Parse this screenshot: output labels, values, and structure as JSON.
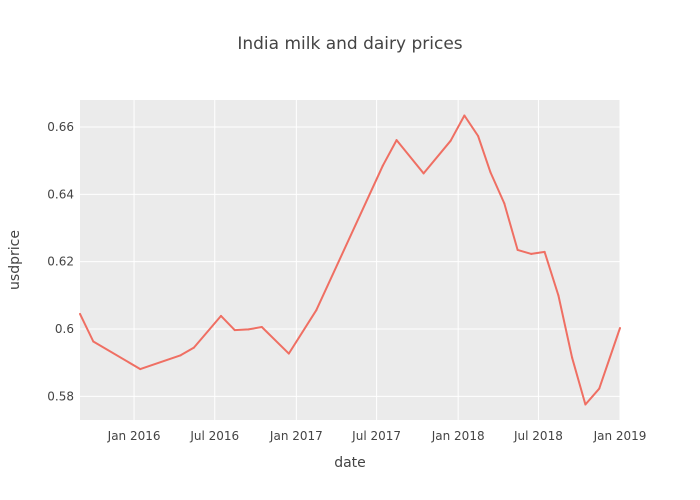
{
  "chart_data": {
    "type": "line",
    "title": "India milk and dairy prices",
    "xlabel": "date",
    "ylabel": "usdprice",
    "ylim": [
      0.573,
      0.668
    ],
    "xlim": [
      "2015-09-01",
      "2019-01-01"
    ],
    "grid": true,
    "legend": "none",
    "x_ticks": [
      {
        "date": "2016-01-01",
        "label": "Jan 2016"
      },
      {
        "date": "2016-07-01",
        "label": "Jul 2016"
      },
      {
        "date": "2017-01-01",
        "label": "Jan 2017"
      },
      {
        "date": "2017-07-01",
        "label": "Jul 2017"
      },
      {
        "date": "2018-01-01",
        "label": "Jan 2018"
      },
      {
        "date": "2018-07-01",
        "label": "Jul 2018"
      },
      {
        "date": "2019-01-01",
        "label": "Jan 2019"
      }
    ],
    "y_ticks": [
      {
        "value": 0.58,
        "label": "0.58"
      },
      {
        "value": 0.6,
        "label": "0.6"
      },
      {
        "value": 0.62,
        "label": "0.62"
      },
      {
        "value": 0.64,
        "label": "0.64"
      },
      {
        "value": 0.66,
        "label": "0.66"
      }
    ],
    "series": [
      {
        "color": "#ef6f63",
        "points": [
          {
            "x": "2015-09-01",
            "y": 0.6045
          },
          {
            "x": "2015-10-01",
            "y": 0.5963
          },
          {
            "x": "2016-01-15",
            "y": 0.5881
          },
          {
            "x": "2016-04-15",
            "y": 0.5922
          },
          {
            "x": "2016-05-15",
            "y": 0.5945
          },
          {
            "x": "2016-07-15",
            "y": 0.6039
          },
          {
            "x": "2016-08-15",
            "y": 0.5997
          },
          {
            "x": "2016-09-15",
            "y": 0.5999
          },
          {
            "x": "2016-10-15",
            "y": 0.6006
          },
          {
            "x": "2016-12-15",
            "y": 0.5927
          },
          {
            "x": "2017-02-15",
            "y": 0.6056
          },
          {
            "x": "2017-07-15",
            "y": 0.6485
          },
          {
            "x": "2017-08-15",
            "y": 0.6561
          },
          {
            "x": "2017-10-15",
            "y": 0.6462
          },
          {
            "x": "2017-12-15",
            "y": 0.6559
          },
          {
            "x": "2018-01-15",
            "y": 0.6634
          },
          {
            "x": "2018-02-15",
            "y": 0.6573
          },
          {
            "x": "2018-03-15",
            "y": 0.6465
          },
          {
            "x": "2018-04-15",
            "y": 0.6373
          },
          {
            "x": "2018-05-15",
            "y": 0.6235
          },
          {
            "x": "2018-06-15",
            "y": 0.6223
          },
          {
            "x": "2018-07-15",
            "y": 0.6229
          },
          {
            "x": "2018-08-15",
            "y": 0.61
          },
          {
            "x": "2018-09-15",
            "y": 0.5915
          },
          {
            "x": "2018-10-15",
            "y": 0.5776
          },
          {
            "x": "2018-11-15",
            "y": 0.5823
          },
          {
            "x": "2019-01-01",
            "y": 0.6003
          }
        ]
      }
    ]
  }
}
